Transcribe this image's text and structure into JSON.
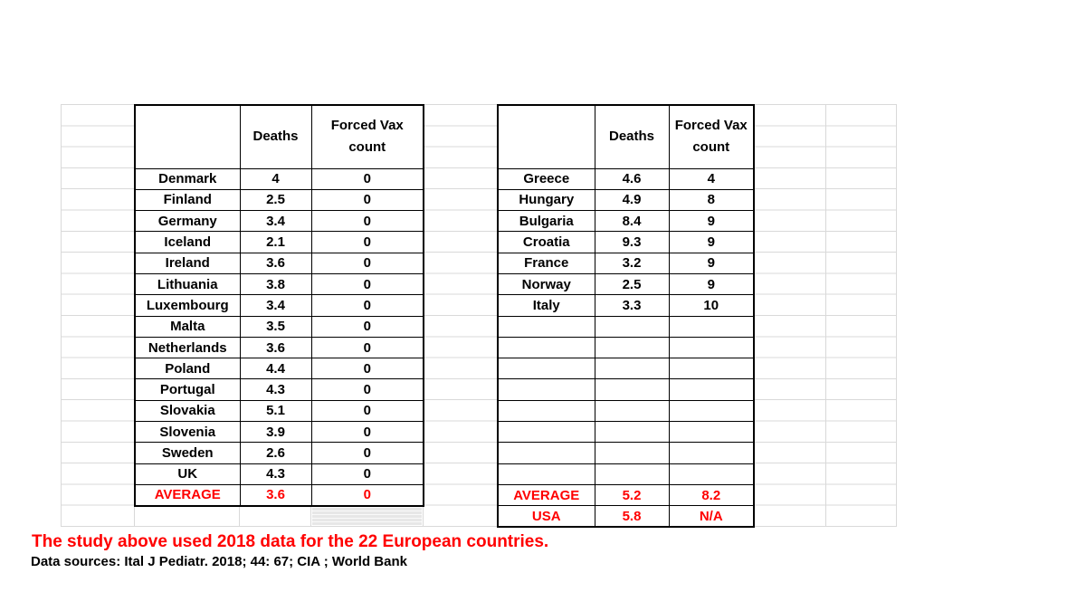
{
  "colors": {
    "highlight_red": "#FF0000",
    "table_border": "#000000",
    "gridline": "#D9D9D9",
    "shaded_cell": "#E7E7E7"
  },
  "left_table": {
    "headers": {
      "country": "",
      "deaths": "Deaths",
      "vax": "Forced Vax count"
    },
    "rows": [
      {
        "country": "Denmark",
        "deaths": "4",
        "vax": "0"
      },
      {
        "country": "Finland",
        "deaths": "2.5",
        "vax": "0"
      },
      {
        "country": "Germany",
        "deaths": "3.4",
        "vax": "0"
      },
      {
        "country": "Iceland",
        "deaths": "2.1",
        "vax": "0"
      },
      {
        "country": "Ireland",
        "deaths": "3.6",
        "vax": "0"
      },
      {
        "country": "Lithuania",
        "deaths": "3.8",
        "vax": "0"
      },
      {
        "country": "Luxembourg",
        "deaths": "3.4",
        "vax": "0"
      },
      {
        "country": "Malta",
        "deaths": "3.5",
        "vax": "0"
      },
      {
        "country": "Netherlands",
        "deaths": "3.6",
        "vax": "0"
      },
      {
        "country": "Poland",
        "deaths": "4.4",
        "vax": "0"
      },
      {
        "country": "Portugal",
        "deaths": "4.3",
        "vax": "0"
      },
      {
        "country": "Slovakia",
        "deaths": "5.1",
        "vax": "0"
      },
      {
        "country": "Slovenia",
        "deaths": "3.9",
        "vax": "0"
      },
      {
        "country": "Sweden",
        "deaths": "2.6",
        "vax": "0"
      },
      {
        "country": "UK",
        "deaths": "4.3",
        "vax": "0"
      },
      {
        "country": "AVERAGE",
        "deaths": "3.6",
        "vax": "0",
        "highlight": true
      }
    ]
  },
  "right_table": {
    "headers": {
      "country": "",
      "deaths": "Deaths",
      "vax": "Forced Vax count"
    },
    "rows": [
      {
        "country": "Greece",
        "deaths": "4.6",
        "vax": "4"
      },
      {
        "country": "Hungary",
        "deaths": "4.9",
        "vax": "8"
      },
      {
        "country": "Bulgaria",
        "deaths": "8.4",
        "vax": "9"
      },
      {
        "country": "Croatia",
        "deaths": "9.3",
        "vax": "9"
      },
      {
        "country": "France",
        "deaths": "3.2",
        "vax": "9"
      },
      {
        "country": "Norway",
        "deaths": "2.5",
        "vax": "9"
      },
      {
        "country": "Italy",
        "deaths": "3.3",
        "vax": "10"
      },
      {
        "country": "",
        "deaths": "",
        "vax": ""
      },
      {
        "country": "",
        "deaths": "",
        "vax": ""
      },
      {
        "country": "",
        "deaths": "",
        "vax": ""
      },
      {
        "country": "",
        "deaths": "",
        "vax": ""
      },
      {
        "country": "",
        "deaths": "",
        "vax": ""
      },
      {
        "country": "",
        "deaths": "",
        "vax": ""
      },
      {
        "country": "",
        "deaths": "",
        "vax": ""
      },
      {
        "country": "",
        "deaths": "",
        "vax": ""
      },
      {
        "country": "AVERAGE",
        "deaths": "5.2",
        "vax": "8.2",
        "highlight": true
      },
      {
        "country": "USA",
        "deaths": "5.8",
        "vax": "N/A",
        "highlight": true
      }
    ]
  },
  "footer": {
    "study_note": "The study above used 2018 data for the 22 European countries.",
    "data_sources": "Data sources: Ital J Pediatr. 2018; 44: 67; CIA ; World Bank"
  }
}
